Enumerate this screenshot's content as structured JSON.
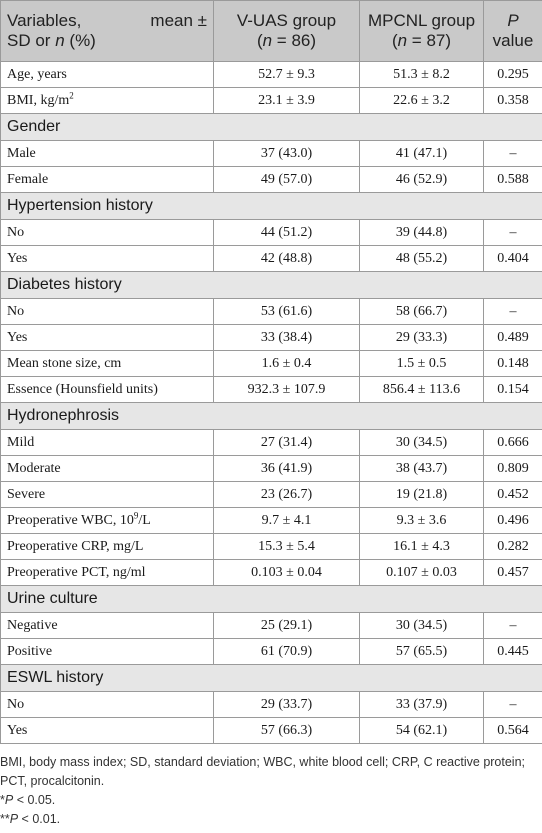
{
  "header": {
    "col1_line1": "Variables,",
    "col1_line1b": "mean ±",
    "col1_line2_sd": "SD or",
    "col1_line2_n": "n",
    "col1_line2_pct": "(%)",
    "col2_name": "V-UAS group",
    "col2_n_sym": "n",
    "col2_n_val": " = 86",
    "col3_name": "MPCNL group",
    "col3_n_sym": "n",
    "col3_n_val": " = 87",
    "col4_p": "P",
    "col4_value": "value"
  },
  "rows": [
    {
      "label": "Age, years",
      "a": "52.7 ± 9.3",
      "b": "51.3 ± 8.2",
      "p": "0.295"
    },
    {
      "label": "BMI, kg/m",
      "sup": "2",
      "a": "23.1 ± 3.9",
      "b": "22.6 ± 3.2",
      "p": "0.358"
    },
    {
      "section": "Gender"
    },
    {
      "label": "Male",
      "a": "37 (43.0)",
      "b": "41 (47.1)",
      "p": "–"
    },
    {
      "label": "Female",
      "a": "49 (57.0)",
      "b": "46 (52.9)",
      "p": "0.588"
    },
    {
      "section": "Hypertension history"
    },
    {
      "label": "No",
      "a": "44 (51.2)",
      "b": "39 (44.8)",
      "p": "–"
    },
    {
      "label": "Yes",
      "a": "42 (48.8)",
      "b": "48 (55.2)",
      "p": "0.404"
    },
    {
      "section": "Diabetes history"
    },
    {
      "label": "No",
      "a": "53 (61.6)",
      "b": "58 (66.7)",
      "p": "–"
    },
    {
      "label": "Yes",
      "a": "33 (38.4)",
      "b": "29 (33.3)",
      "p": "0.489"
    },
    {
      "label": "Mean stone size, cm",
      "a": "1.6 ± 0.4",
      "b": "1.5 ± 0.5",
      "p": "0.148"
    },
    {
      "label": "Essence (Hounsfield units)",
      "a": "932.3 ± 107.9",
      "b": "856.4 ± 113.6",
      "p": "0.154"
    },
    {
      "section": "Hydronephrosis"
    },
    {
      "label": "Mild",
      "a": "27 (31.4)",
      "b": "30 (34.5)",
      "p": "0.666"
    },
    {
      "label": "Moderate",
      "a": "36 (41.9)",
      "b": "38 (43.7)",
      "p": "0.809"
    },
    {
      "label": "Severe",
      "a": "23 (26.7)",
      "b": "19 (21.8)",
      "p": "0.452"
    },
    {
      "label": "Preoperative WBC, 10",
      "sup": "9",
      "label_tail": "/L",
      "a": "9.7 ± 4.1",
      "b": "9.3 ± 3.6",
      "p": "0.496"
    },
    {
      "label": "Preoperative CRP, mg/L",
      "a": "15.3 ± 5.4",
      "b": "16.1 ± 4.3",
      "p": "0.282"
    },
    {
      "label": "Preoperative PCT, ng/ml",
      "a": "0.103 ± 0.04",
      "b": "0.107 ± 0.03",
      "p": "0.457"
    },
    {
      "section": "Urine culture"
    },
    {
      "label": "Negative",
      "a": "25 (29.1)",
      "b": "30 (34.5)",
      "p": "–"
    },
    {
      "label": "Positive",
      "a": "61 (70.9)",
      "b": "57 (65.5)",
      "p": "0.445"
    },
    {
      "section": "ESWL history"
    },
    {
      "label": "No",
      "a": "29 (33.7)",
      "b": "33 (37.9)",
      "p": "–"
    },
    {
      "label": "Yes",
      "a": "57 (66.3)",
      "b": "54 (62.1)",
      "p": "0.564"
    }
  ],
  "footnotes": {
    "abbrev": "BMI, body mass index; SD, standard deviation; WBC, white blood cell; CRP, C reactive protein; PCT, procalcitonin.",
    "note1_star": "*",
    "note1_p": "P",
    "note1_rest": " < 0.05.",
    "note2_star": "**",
    "note2_p": "P",
    "note2_rest": " < 0.01."
  }
}
